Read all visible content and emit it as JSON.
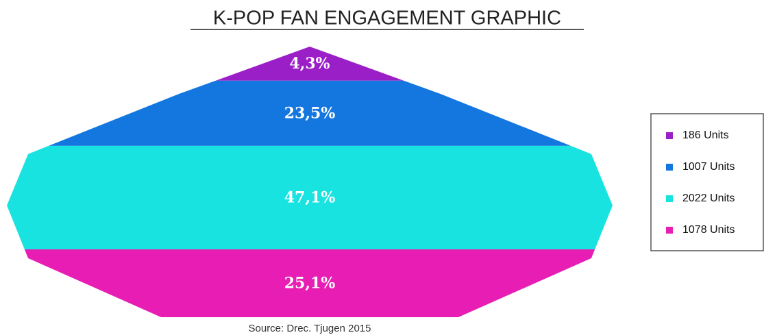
{
  "chart_data": {
    "type": "pyramid",
    "title": "K-POP FAN ENGAGEMENT GRAPHIC",
    "source": "Source: Drec. Tjugen 2015",
    "categories": [
      "186 Units",
      "1007 Units",
      "2022 Units",
      "1078 Units"
    ],
    "values": [
      4.3,
      23.5,
      47.1,
      25.1
    ],
    "value_labels": [
      "4,3%",
      "23,5%",
      "47,1%",
      "25,1%"
    ],
    "colors": [
      "#9b1fc6",
      "#1477e0",
      "#19e3e0",
      "#e81eb4"
    ],
    "legend": "right"
  }
}
